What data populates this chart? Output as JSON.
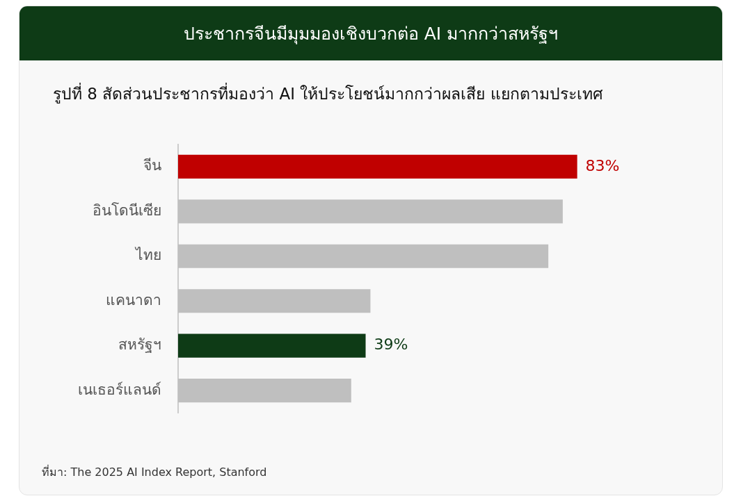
{
  "chart_data": {
    "type": "bar",
    "orientation": "horizontal",
    "title": "ประชากรจีนมีมุมมองเชิงบวกต่อ AI มากกว่าสหรัฐฯ",
    "subtitle": "รูปที่ 8 สัดส่วนประชากรที่มองว่า AI ให้ประโยชน์มากกว่าผลเสีย แยกตามประเทศ",
    "categories": [
      "จีน",
      "อินโดนีเซีย",
      "ไทย",
      "แคนาดา",
      "สหรัฐฯ",
      "เนเธอร์แลนด์"
    ],
    "values": [
      83,
      80,
      77,
      40,
      39,
      36
    ],
    "colors": [
      "#c00000",
      "#bfbfbf",
      "#bfbfbf",
      "#bfbfbf",
      "#0e3b16",
      "#bfbfbf"
    ],
    "value_labels": [
      "83%",
      null,
      null,
      null,
      "39%",
      null
    ],
    "tick_labels": "y",
    "grid": false,
    "legend": false,
    "annotations": [
      "ที่มา: The 2025 AI Index Report, Stanford"
    ]
  }
}
